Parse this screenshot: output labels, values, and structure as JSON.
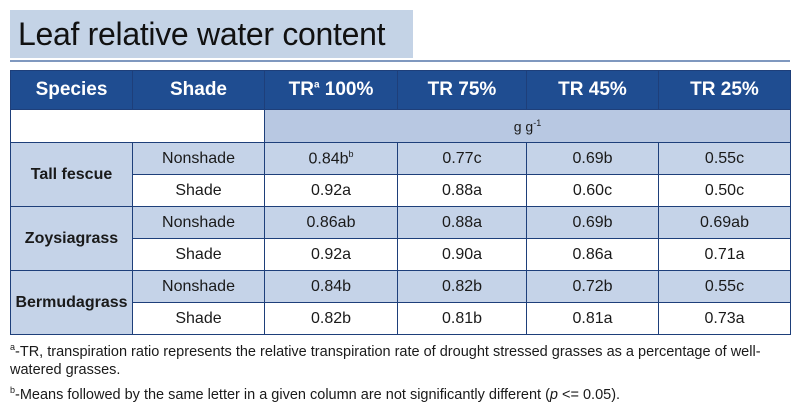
{
  "title": "Leaf relative water content",
  "table": {
    "headers": {
      "species": "Species",
      "shade": "Shade",
      "tr100_prefix": "TR",
      "tr100_sup": "a",
      "tr100_suffix": " 100%",
      "tr75": "TR 75%",
      "tr45": "TR 45%",
      "tr25": "TR 25%"
    },
    "unit_main": "g g",
    "unit_sup": "-1",
    "groups": [
      {
        "species": "Tall fescue",
        "rows": [
          {
            "shade": "Nonshade",
            "tr100": "0.84b",
            "tr100_sup": "b",
            "tr75": "0.77c",
            "tr45": "0.69b",
            "tr25": "0.55c"
          },
          {
            "shade": "Shade",
            "tr100": "0.92a",
            "tr75": "0.88a",
            "tr45": "0.60c",
            "tr25": "0.50c"
          }
        ]
      },
      {
        "species": "Zoysiagrass",
        "rows": [
          {
            "shade": "Nonshade",
            "tr100": "0.86ab",
            "tr75": "0.88a",
            "tr45": "0.69b",
            "tr25": "0.69ab"
          },
          {
            "shade": "Shade",
            "tr100": "0.92a",
            "tr75": "0.90a",
            "tr45": "0.86a",
            "tr25": "0.71a"
          }
        ]
      },
      {
        "species": "Bermudagrass",
        "rows": [
          {
            "shade": "Nonshade",
            "tr100": "0.84b",
            "tr75": "0.82b",
            "tr45": "0.72b",
            "tr25": "0.55c"
          },
          {
            "shade": "Shade",
            "tr100": "0.82b",
            "tr75": "0.81b",
            "tr45": "0.81a",
            "tr25": "0.73a"
          }
        ]
      }
    ]
  },
  "footnotes": {
    "a_marker": "a",
    "a_text": "-TR, transpiration ratio represents the relative transpiration rate of drought stressed grasses as a percentage of well-watered grasses.",
    "b_marker": "b",
    "b_text_before": "-Means followed by the same letter in a given column are not significantly different (",
    "b_p": "p",
    "b_text_after": " <= 0.05)."
  },
  "colors": {
    "header_bg": "#1f4d91",
    "title_bg": "#c4d3e6",
    "shaded_row_bg": "#c5d3e8",
    "unit_bg": "#b8c8e2"
  }
}
